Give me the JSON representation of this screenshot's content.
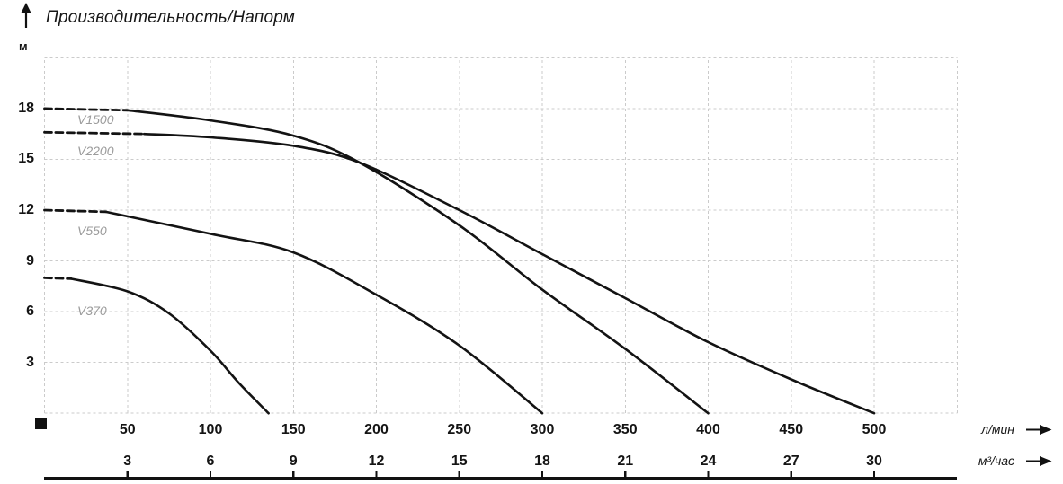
{
  "header": {
    "title": "Производительность/Напорм"
  },
  "chart_data": {
    "type": "line",
    "title": "Производительность/Напорм",
    "ylabel": "м",
    "xlabel_primary": "л/мин",
    "xlabel_secondary": "м³/час",
    "xlim_lmin": [
      0,
      550
    ],
    "ylim_m": [
      0,
      21
    ],
    "grid": "dashed",
    "legend_position": "labels-on-curves",
    "x_ticks_lmin": [
      50,
      100,
      150,
      200,
      250,
      300,
      350,
      400,
      450,
      500
    ],
    "x_ticks_m3h": [
      3,
      6,
      9,
      12,
      15,
      18,
      21,
      24,
      27,
      30
    ],
    "y_ticks_m": [
      18,
      15,
      12,
      9,
      6,
      3
    ],
    "series": [
      {
        "name": "V1500",
        "color": "#131313",
        "max_head_m": 18,
        "max_flow_lmin": 400,
        "dashed_until_lmin": 50,
        "points_lmin_m": [
          [
            0,
            18
          ],
          [
            50,
            17.9
          ],
          [
            100,
            17.3
          ],
          [
            150,
            16.4
          ],
          [
            190,
            14.8
          ],
          [
            250,
            11.1
          ],
          [
            300,
            7.3
          ],
          [
            350,
            3.8
          ],
          [
            400,
            0
          ]
        ]
      },
      {
        "name": "V2200",
        "color": "#131313",
        "max_head_m": 16.6,
        "max_flow_lmin": 500,
        "dashed_until_lmin": 60,
        "points_lmin_m": [
          [
            0,
            16.6
          ],
          [
            60,
            16.5
          ],
          [
            100,
            16.3
          ],
          [
            150,
            15.8
          ],
          [
            190,
            14.8
          ],
          [
            250,
            12
          ],
          [
            300,
            9.4
          ],
          [
            350,
            6.8
          ],
          [
            400,
            4.2
          ],
          [
            450,
            2
          ],
          [
            500,
            0
          ]
        ]
      },
      {
        "name": "V550",
        "color": "#131313",
        "max_head_m": 12,
        "max_flow_lmin": 300,
        "dashed_until_lmin": 37,
        "points_lmin_m": [
          [
            0,
            12
          ],
          [
            37,
            11.9
          ],
          [
            100,
            10.6
          ],
          [
            150,
            9.5
          ],
          [
            200,
            7
          ],
          [
            250,
            4
          ],
          [
            300,
            0
          ]
        ]
      },
      {
        "name": "V370",
        "color": "#131313",
        "max_head_m": 8,
        "max_flow_lmin": 135,
        "dashed_until_lmin": 16,
        "points_lmin_m": [
          [
            0,
            8
          ],
          [
            16,
            7.95
          ],
          [
            50,
            7.2
          ],
          [
            75,
            5.9
          ],
          [
            100,
            3.7
          ],
          [
            117,
            1.8
          ],
          [
            135,
            0
          ]
        ]
      }
    ]
  }
}
